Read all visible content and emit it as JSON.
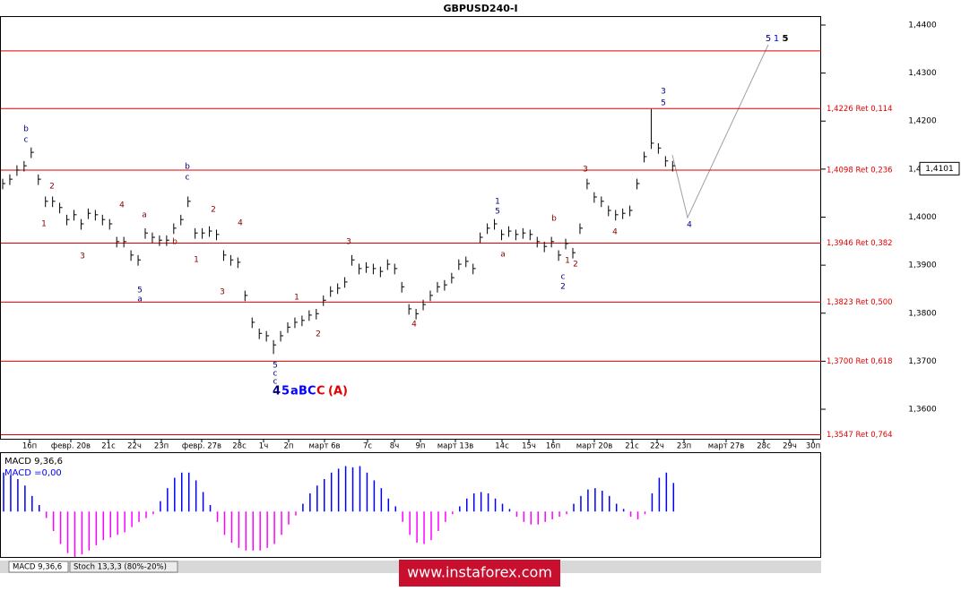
{
  "chart_data": {
    "type": "ohlc",
    "title": "GBPUSD240-I",
    "ylim": [
      1.35385,
      1.44186
    ],
    "yticks": [
      {
        "value": 1.36,
        "label": "1,3600"
      },
      {
        "value": 1.37,
        "label": "1,3700"
      },
      {
        "value": 1.38,
        "label": "1,3800"
      },
      {
        "value": 1.39,
        "label": "1,3900"
      },
      {
        "value": 1.4,
        "label": "1,4000"
      },
      {
        "value": 1.41,
        "label": "1,4100"
      },
      {
        "value": 1.42,
        "label": "1,4200"
      },
      {
        "value": 1.43,
        "label": "1,4300"
      },
      {
        "value": 1.44,
        "label": "1,4400"
      }
    ],
    "current_price": {
      "value": 1.4101,
      "label": "1,4101"
    },
    "levels_color": "#e00000",
    "levels": [
      {
        "value": 1.4346,
        "label": null
      },
      {
        "value": 1.4226,
        "label": "1,4226 Ret 0,114"
      },
      {
        "value": 1.4098,
        "label": "1,4098 Ret 0,236"
      },
      {
        "value": 1.3946,
        "label": "1,3946 Ret 0,382"
      },
      {
        "value": 1.3823,
        "label": "1,3823 Ret 0,500"
      },
      {
        "value": 1.37,
        "label": "1,3700 Ret 0,618"
      },
      {
        "value": 1.3547,
        "label": "1,3547 Ret 0,764"
      }
    ],
    "date_labels": [
      "16п",
      "февр. 20в",
      "21с",
      "22ч",
      "23п",
      "февр. 27в",
      "28с",
      "1ч",
      "2п",
      "март 6в",
      "7с",
      "8ч",
      "9п",
      "март 13в",
      "14с",
      "15ч",
      "16п",
      "март 20в",
      "21с",
      "22ч",
      "23п",
      "март 27в",
      "28с",
      "29ч",
      "30п"
    ],
    "color": "#000000",
    "high": [
      1.408,
      1.4089,
      1.4108,
      1.4117,
      1.4145,
      1.4089,
      1.4043,
      1.4043,
      1.403,
      1.4005,
      1.4015,
      1.3996,
      1.4018,
      1.4015,
      1.4005,
      1.3996,
      1.3959,
      1.3959,
      1.3931,
      1.3921,
      1.3977,
      1.3968,
      1.3962,
      1.3962,
      1.3987,
      1.4005,
      1.4043,
      1.3977,
      1.3977,
      1.3981,
      1.3974,
      1.3931,
      1.3921,
      1.3916,
      1.3847,
      1.3791,
      1.3768,
      1.3763,
      1.3744,
      1.3763,
      1.3781,
      1.3791,
      1.3795,
      1.3806,
      1.3809,
      1.3837,
      1.3856,
      1.3862,
      1.3875,
      1.3921,
      1.3903,
      1.3906,
      1.3903,
      1.3897,
      1.3912,
      1.3903,
      1.3865,
      1.3819,
      1.3809,
      1.3828,
      1.3847,
      1.3865,
      1.3869,
      1.3884,
      1.3912,
      1.3918,
      1.3903,
      1.3968,
      1.3987,
      1.3996,
      1.3974,
      1.3981,
      1.3974,
      1.3977,
      1.3974,
      1.3959,
      1.3949,
      1.3959,
      1.3931,
      1.3955,
      1.3936,
      1.3987,
      1.408,
      1.4052,
      1.4043,
      1.4024,
      1.4015,
      1.4018,
      1.4024,
      1.408,
      1.4136,
      1.4225,
      1.4154,
      1.4127,
      1.4117
    ],
    "low": [
      1.4058,
      1.4067,
      1.4086,
      1.4095,
      1.4123,
      1.4067,
      1.4021,
      1.4021,
      1.4008,
      1.3983,
      1.3993,
      1.3974,
      1.3996,
      1.3993,
      1.3983,
      1.3974,
      1.3937,
      1.3937,
      1.3909,
      1.3899,
      1.3955,
      1.3946,
      1.394,
      1.394,
      1.3965,
      1.3983,
      1.4021,
      1.3955,
      1.3955,
      1.3959,
      1.3952,
      1.3909,
      1.3899,
      1.3894,
      1.3825,
      1.3769,
      1.3746,
      1.3741,
      1.3715,
      1.3741,
      1.3759,
      1.3769,
      1.3773,
      1.3784,
      1.3787,
      1.3815,
      1.3834,
      1.384,
      1.3853,
      1.3899,
      1.3881,
      1.3884,
      1.3881,
      1.3875,
      1.389,
      1.3881,
      1.3843,
      1.3797,
      1.3787,
      1.3806,
      1.3825,
      1.3843,
      1.3847,
      1.3862,
      1.389,
      1.3896,
      1.3881,
      1.3946,
      1.3965,
      1.3974,
      1.3952,
      1.3959,
      1.3952,
      1.3955,
      1.3952,
      1.3937,
      1.3927,
      1.3937,
      1.3909,
      1.3933,
      1.3914,
      1.3965,
      1.4058,
      1.403,
      1.4021,
      1.4002,
      1.3993,
      1.3996,
      1.4002,
      1.4058,
      1.4114,
      1.4142,
      1.4132,
      1.4105,
      1.4095
    ],
    "close": [
      1.407,
      1.4079,
      1.4098,
      1.4107,
      1.4135,
      1.4079,
      1.4033,
      1.4033,
      1.402,
      1.3995,
      1.4005,
      1.3986,
      1.4008,
      1.4005,
      1.3995,
      1.3986,
      1.3949,
      1.3949,
      1.3921,
      1.3911,
      1.3967,
      1.3958,
      1.3952,
      1.3952,
      1.3977,
      1.3995,
      1.4033,
      1.3967,
      1.3967,
      1.3971,
      1.3964,
      1.3921,
      1.3911,
      1.3906,
      1.3837,
      1.3781,
      1.3758,
      1.3753,
      1.3734,
      1.3753,
      1.3771,
      1.3781,
      1.3785,
      1.3796,
      1.3799,
      1.3827,
      1.3846,
      1.3852,
      1.3865,
      1.3911,
      1.3893,
      1.3896,
      1.3893,
      1.3887,
      1.3902,
      1.3893,
      1.3855,
      1.3809,
      1.3799,
      1.3818,
      1.3837,
      1.3855,
      1.3859,
      1.3874,
      1.3902,
      1.3908,
      1.3893,
      1.3958,
      1.3977,
      1.3986,
      1.3964,
      1.3971,
      1.3964,
      1.3967,
      1.3964,
      1.3949,
      1.3939,
      1.3949,
      1.3921,
      1.3945,
      1.3926,
      1.3977,
      1.407,
      1.4042,
      1.4033,
      1.4014,
      1.4005,
      1.4008,
      1.4014,
      1.407,
      1.4126,
      1.4154,
      1.4144,
      1.4117,
      1.4107
    ],
    "wave_labels": [
      {
        "text": "b",
        "color": "#000080"
      },
      {
        "text": "c",
        "color": "#000080"
      },
      {
        "text": "2",
        "color": "#800000"
      },
      {
        "text": "1",
        "color": "#800000"
      },
      {
        "text": "3",
        "color": "#800000"
      },
      {
        "text": "4",
        "color": "#800000"
      },
      {
        "text": "5",
        "color": "#000080"
      },
      {
        "text": "a",
        "color": "#000080"
      },
      {
        "text": "a",
        "color": "#800000"
      },
      {
        "text": "b",
        "color": "#800000"
      },
      {
        "text": "b",
        "color": "#000080"
      },
      {
        "text": "c",
        "color": "#000080"
      },
      {
        "text": "2",
        "color": "#800000"
      },
      {
        "text": "1",
        "color": "#800000"
      },
      {
        "text": "4",
        "color": "#800000"
      },
      {
        "text": "3",
        "color": "#800000"
      },
      {
        "text": "5",
        "color": "#000080"
      },
      {
        "text": "c",
        "color": "#000080"
      },
      {
        "text": "c",
        "color": "#000080"
      },
      {
        "text": "1",
        "color": "#800000"
      },
      {
        "text": "2",
        "color": "#800000"
      },
      {
        "text": "3",
        "color": "#800000"
      },
      {
        "text": "4",
        "color": "#800000"
      },
      {
        "text": "1",
        "color": "#000080"
      },
      {
        "text": "5",
        "color": "#000080"
      },
      {
        "text": "a",
        "color": "#800000"
      },
      {
        "text": "b",
        "color": "#800000"
      },
      {
        "text": "1",
        "color": "#800000"
      },
      {
        "text": "c",
        "color": "#000080"
      },
      {
        "text": "2",
        "color": "#000080"
      },
      {
        "text": "2",
        "color": "#800000"
      },
      {
        "text": "3",
        "color": "#800000"
      },
      {
        "text": "4",
        "color": "#800000"
      },
      {
        "text": "3",
        "color": "#000080"
      },
      {
        "text": "5",
        "color": "#000080"
      },
      {
        "text": "4",
        "color": "#000080"
      }
    ],
    "big_labels": [
      {
        "text": "4",
        "color": "#000080"
      },
      {
        "text": "5",
        "color": "#0000ff"
      },
      {
        "text": "a",
        "color": "#0000ff"
      },
      {
        "text": "B",
        "color": "#0000ff"
      },
      {
        "text": "C",
        "color": "#0000ff"
      },
      {
        "text": "C",
        "color": "#e00000"
      },
      {
        "text": "(A)",
        "color": "#e00000"
      }
    ],
    "top_labels": [
      {
        "text": "5",
        "color": "#000080"
      },
      {
        "text": "1",
        "color": "#0000ff"
      },
      {
        "text": "5",
        "color": "#000000"
      }
    ],
    "indicator": {
      "title": "MACD 9,36,6",
      "value_label": "MACD =0,00",
      "ylim": [
        -0.0035,
        0.0045
      ],
      "positive_color": "#0000ff",
      "negative_color": "#ff00ff",
      "values": [
        0.003,
        0.0028,
        0.0025,
        0.002,
        0.0012,
        0.0005,
        -0.0005,
        -0.0015,
        -0.0025,
        -0.0032,
        -0.0035,
        -0.0033,
        -0.003,
        -0.0026,
        -0.0022,
        -0.002,
        -0.0018,
        -0.0016,
        -0.0012,
        -0.0008,
        -0.0005,
        -0.0002,
        0.0008,
        0.0018,
        0.0026,
        0.003,
        0.003,
        0.0024,
        0.0015,
        0.0005,
        -0.0008,
        -0.0018,
        -0.0024,
        -0.0028,
        -0.003,
        -0.003,
        -0.003,
        -0.0028,
        -0.0025,
        -0.0018,
        -0.001,
        -0.0003,
        0.0006,
        0.0014,
        0.002,
        0.0025,
        0.003,
        0.0033,
        0.0035,
        0.0034,
        0.0035,
        0.003,
        0.0024,
        0.0018,
        0.001,
        0.0004,
        -0.0008,
        -0.0018,
        -0.0024,
        -0.0025,
        -0.0022,
        -0.0015,
        -0.0008,
        -0.0002,
        0.0004,
        0.001,
        0.0014,
        0.0015,
        0.0014,
        0.001,
        0.0006,
        0.0002,
        -0.0004,
        -0.0008,
        -0.001,
        -0.001,
        -0.0008,
        -0.0006,
        -0.0004,
        -0.0002,
        0.0006,
        0.0012,
        0.0017,
        0.0018,
        0.0016,
        0.0012,
        0.0006,
        0.0002,
        -0.0004,
        -0.0006,
        -0.0002,
        0.0014,
        0.0026,
        0.003,
        0.0022
      ]
    },
    "tabs": [
      "MACD 9,36,6",
      "Stoch 13,3,3 (80%-20%)"
    ],
    "watermark": "www.instaforex.com"
  }
}
